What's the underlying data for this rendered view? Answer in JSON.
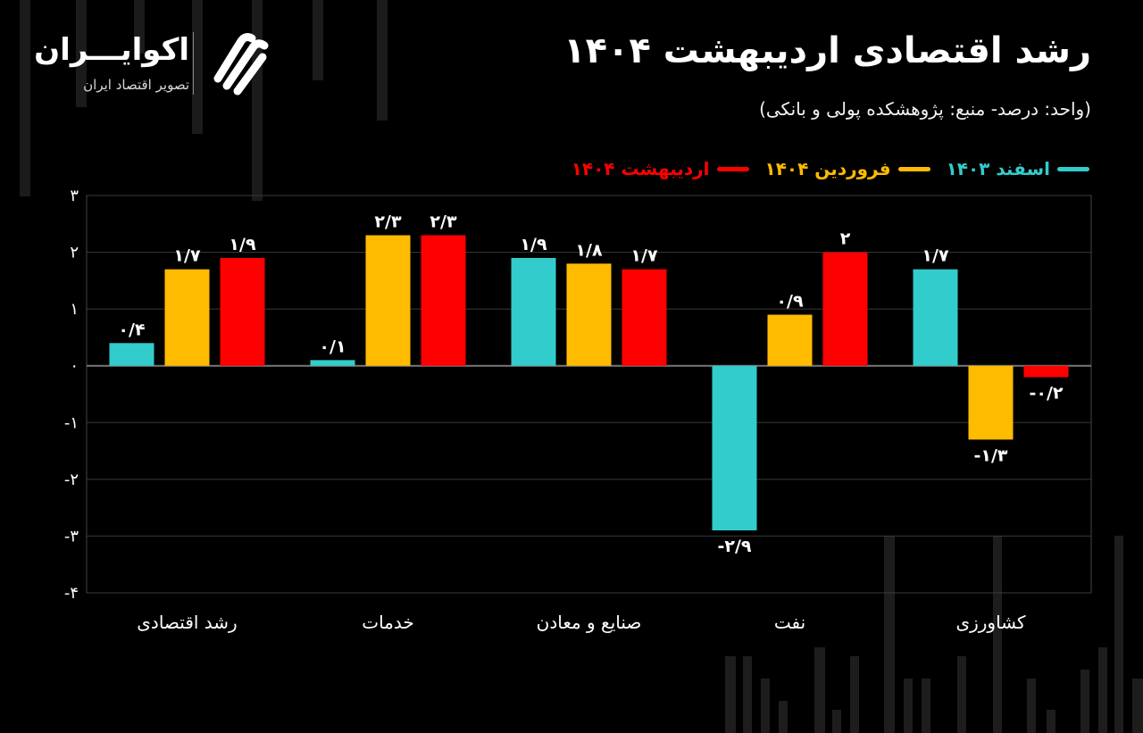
{
  "header": {
    "title": "رشد اقتصادی اردیبهشت ۱۴۰۴",
    "subtitle": "(واحد: درصد- منبع: پژوهشکده پولی و بانکی)"
  },
  "logo": {
    "name": "اکوایـــران",
    "tagline": "تصویر اقتصاد ایران"
  },
  "colors": {
    "background": "#000000",
    "esfand_1403": "#33cccc",
    "farvardin_1404": "#ffbb00",
    "ordibehesht_1404": "#ff0000"
  },
  "chart_data": {
    "type": "bar",
    "categories": [
      "رشد اقتصادی",
      "خدمات",
      "صنایع و معادن",
      "نفت",
      "کشاورزی"
    ],
    "series": [
      {
        "name": "اسفند ۱۴۰۳",
        "color": "#33cccc",
        "values": [
          0.4,
          0.1,
          1.9,
          -2.9,
          1.7
        ],
        "labels": [
          "۰/۴",
          "۰/۱",
          "۱/۹",
          "-۲/۹",
          "۱/۷"
        ]
      },
      {
        "name": "فروردین ۱۴۰۴",
        "color": "#ffbb00",
        "values": [
          1.7,
          2.3,
          1.8,
          0.9,
          -1.3
        ],
        "labels": [
          "۱/۷",
          "۲/۳",
          "۱/۸",
          "۰/۹",
          "-۱/۳"
        ]
      },
      {
        "name": "اردیبهشت ۱۴۰۴",
        "color": "#ff0000",
        "values": [
          1.9,
          2.3,
          1.7,
          2.0,
          -0.2
        ],
        "labels": [
          "۱/۹",
          "۲/۳",
          "۱/۷",
          "۲",
          "-۰/۲"
        ]
      }
    ],
    "ylim": [
      -4,
      3
    ],
    "yticks": [
      3,
      2,
      1,
      0,
      -1,
      -2,
      -3,
      -4
    ],
    "ytick_labels": [
      "۳",
      "۲",
      "۱",
      "۰",
      "-۱",
      "-۲",
      "-۳",
      "-۴"
    ],
    "grid": true,
    "legend_position": "top-right"
  }
}
